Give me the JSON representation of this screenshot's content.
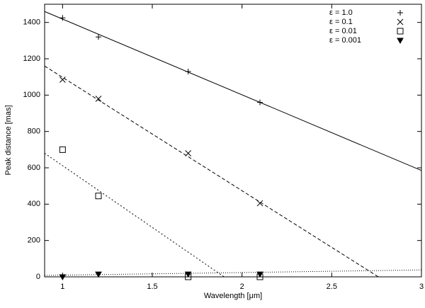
{
  "chart_data": {
    "type": "scatter",
    "xlabel": "Wavelength [μm]",
    "ylabel": "Peak distance [mas]",
    "xlim": [
      0.9,
      3
    ],
    "ylim": [
      0,
      1500
    ],
    "xticks": [
      1,
      1.5,
      2,
      2.5,
      3
    ],
    "yticks": [
      0,
      200,
      400,
      600,
      800,
      1000,
      1200,
      1400
    ],
    "legend": "upper right",
    "series": [
      {
        "name": "ε = 1.0",
        "marker": "plus",
        "color": "#000000",
        "x": [
          1.0,
          1.2,
          1.7,
          2.1
        ],
        "values": [
          1425,
          1320,
          1130,
          960
        ]
      },
      {
        "name": "ε = 0.1",
        "marker": "cross",
        "color": "#000000",
        "x": [
          1.0,
          1.2,
          1.7,
          2.1
        ],
        "values": [
          1085,
          980,
          680,
          405
        ]
      },
      {
        "name": "ε = 0.01",
        "marker": "square",
        "color": "#000000",
        "x": [
          1.0,
          1.2,
          1.7,
          2.1
        ],
        "values": [
          700,
          445,
          0,
          0
        ]
      },
      {
        "name": "ε = 0.001",
        "marker": "triangle-down",
        "color": "#000000",
        "x": [
          1.0,
          1.2,
          1.7,
          2.1
        ],
        "values": [
          0,
          15,
          15,
          15
        ]
      }
    ],
    "lines": [
      {
        "dash": "solid",
        "x": [
          0.9,
          3
        ],
        "values": [
          1460,
          585
        ]
      },
      {
        "dash": "dashed",
        "x": [
          0.9,
          2.76
        ],
        "values": [
          1160,
          0
        ]
      },
      {
        "dash": "dotted",
        "x": [
          0.9,
          1.9
        ],
        "values": [
          680,
          0
        ]
      },
      {
        "dash": "fine-dotted",
        "x": [
          0.9,
          3
        ],
        "values": [
          8,
          38
        ]
      }
    ]
  }
}
